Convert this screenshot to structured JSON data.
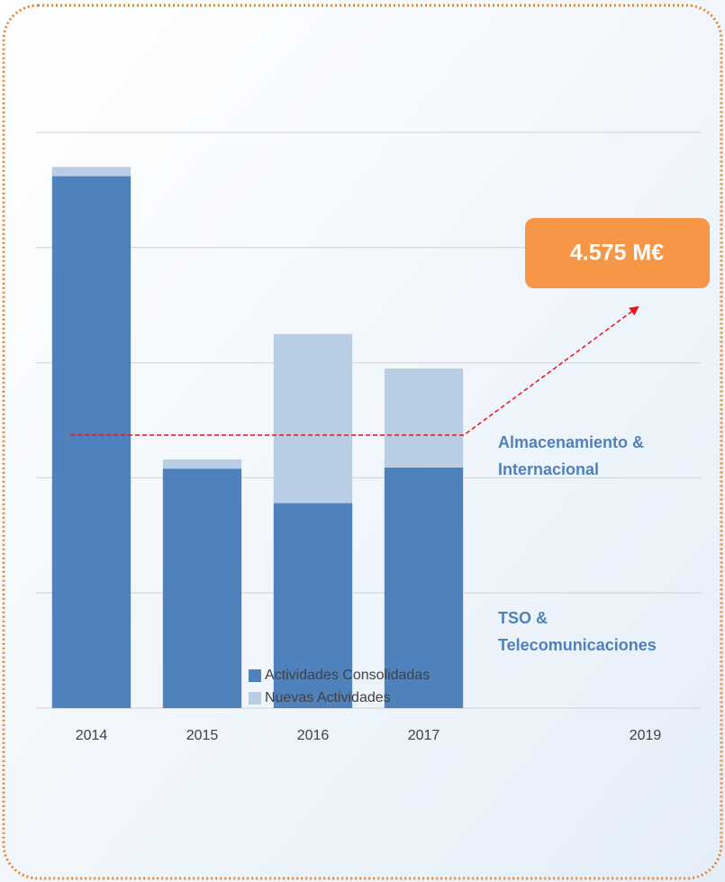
{
  "chart_data": {
    "type": "stacked-bar",
    "categories": [
      "2014",
      "2015",
      "2016",
      "2017",
      null,
      "2019"
    ],
    "series": [
      {
        "name": "Actividades Consolidadas",
        "color": "#4f81bd",
        "values": [
          4.62,
          2.08,
          1.78,
          2.09,
          null,
          null
        ]
      },
      {
        "name": "Nuevas Actividades",
        "color": "#b9cde5",
        "values": [
          0.08,
          0.08,
          1.47,
          0.86,
          null,
          null
        ]
      }
    ],
    "ylim": [
      0,
      5
    ],
    "yticks": [
      0,
      1,
      2,
      3,
      4,
      5
    ],
    "grid": true,
    "annotations": {
      "target": "4.575 M€",
      "upper_label": [
        "Almacenamiento &",
        "Internacional"
      ],
      "lower_label": [
        "TSO &",
        "Telecomunicaciones"
      ]
    }
  }
}
